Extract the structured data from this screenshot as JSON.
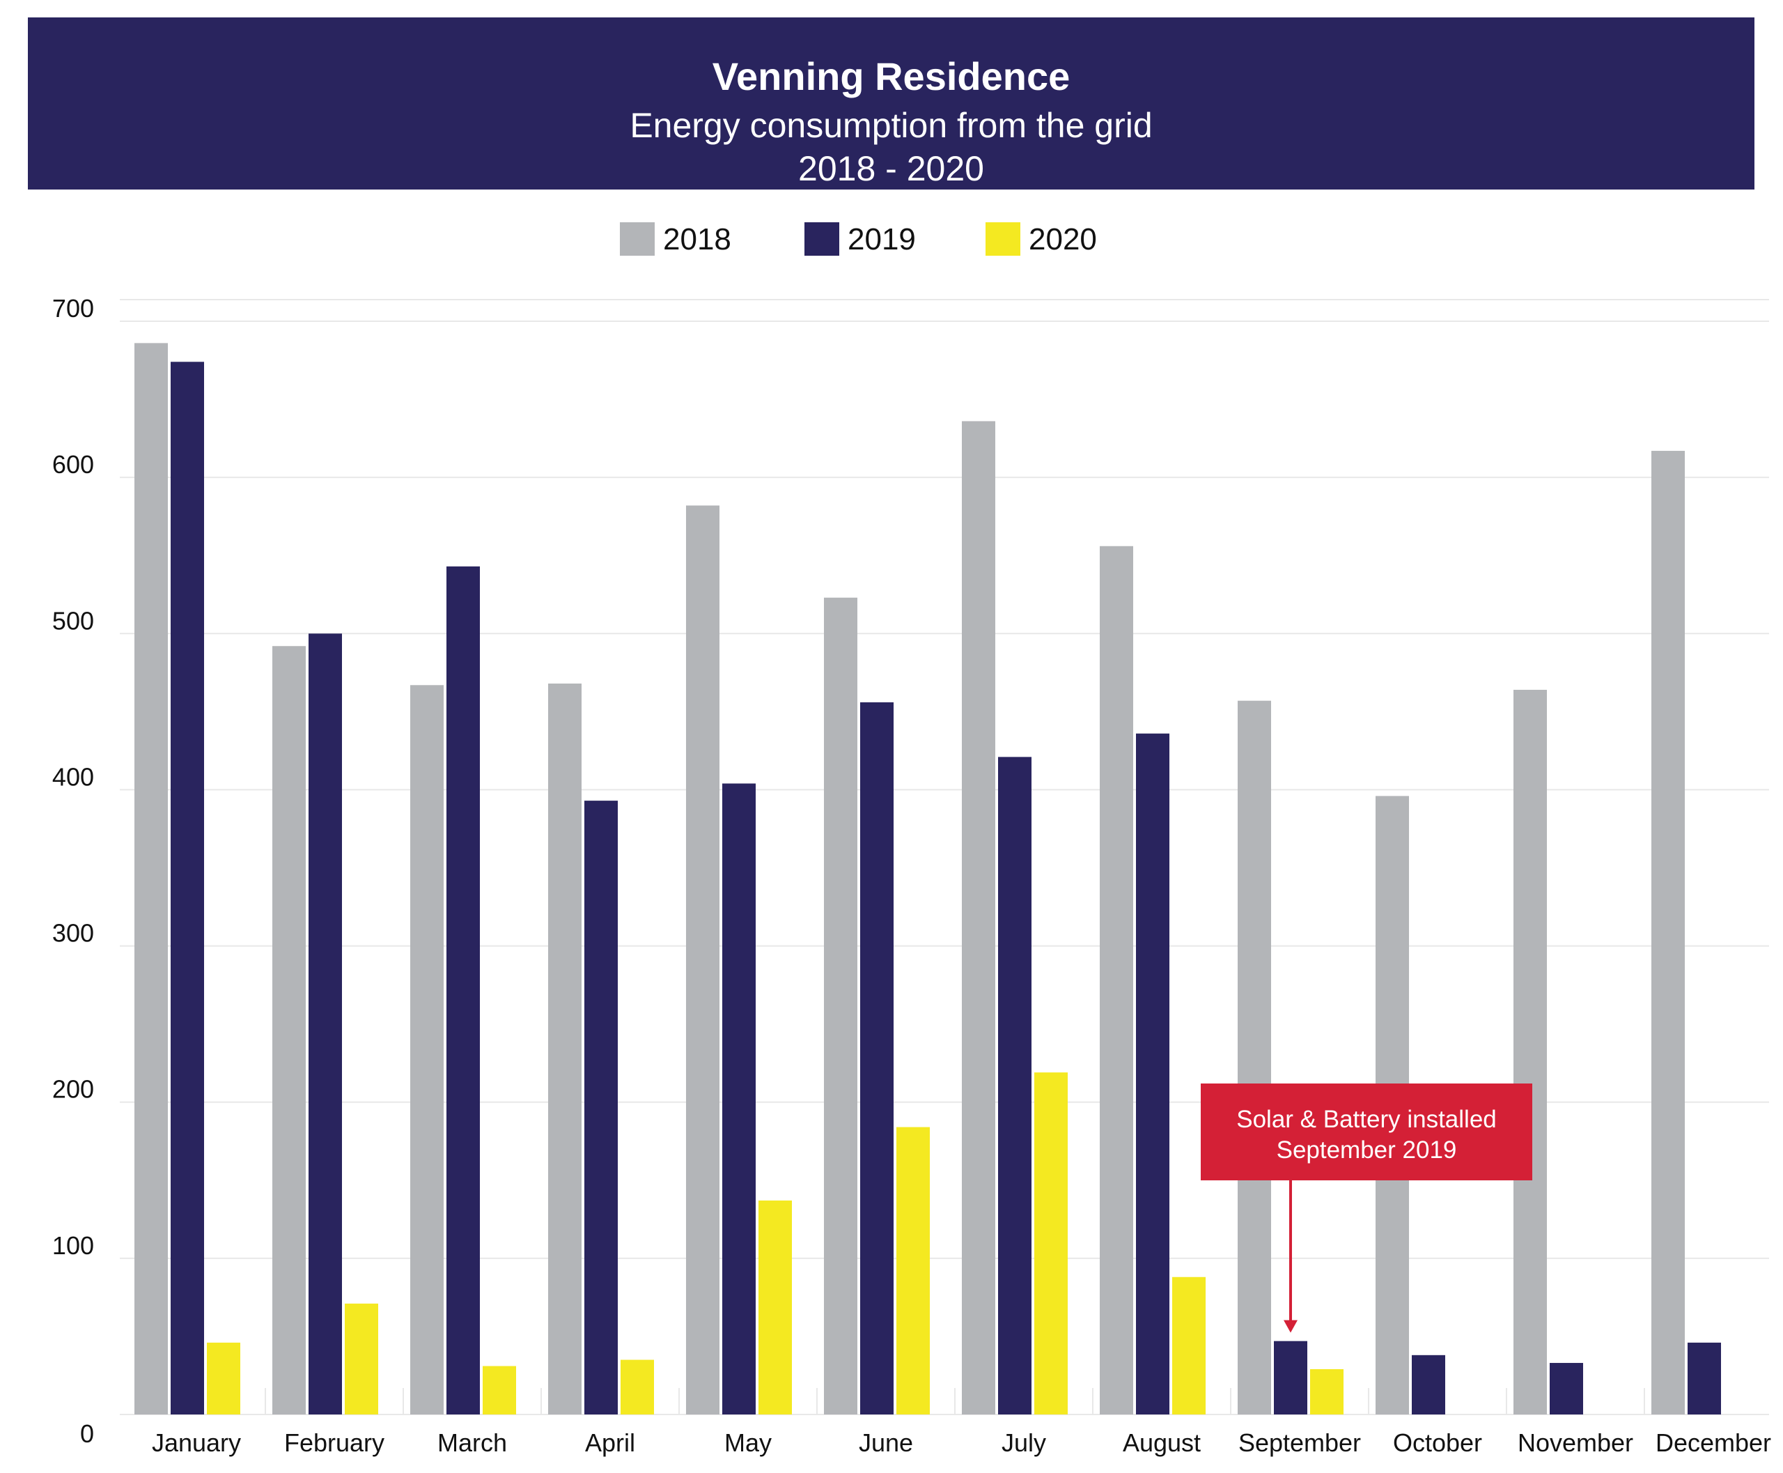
{
  "header": {
    "title": "Venning Residence",
    "subtitle": "Energy consumption from the grid",
    "years": "2018 - 2020"
  },
  "colors": {
    "header_bg": "#29245e",
    "s2018": "#b3b5b8",
    "s2019": "#29245e",
    "s2020": "#f4e921",
    "annotation": "#d42036",
    "grid": "#e8e8e8"
  },
  "chart_data": {
    "type": "bar",
    "title": "Venning Residence",
    "subtitle": "Energy consumption from the grid",
    "xlabel": "",
    "ylabel": "",
    "ylim": [
      0,
      700
    ],
    "yticks": [
      0,
      100,
      200,
      300,
      400,
      500,
      600,
      700
    ],
    "grid": true,
    "legend": "top-center",
    "categories": [
      "January",
      "February",
      "March",
      "April",
      "May",
      "June",
      "July",
      "August",
      "September",
      "October",
      "November",
      "December"
    ],
    "series": [
      {
        "name": "2018",
        "color": "#b3b5b8",
        "values": [
          686,
          492,
          467,
          468,
          582,
          523,
          636,
          556,
          457,
          396,
          464,
          617
        ]
      },
      {
        "name": "2019",
        "color": "#29245e",
        "values": [
          674,
          500,
          543,
          393,
          404,
          456,
          421,
          436,
          47,
          38,
          33,
          46
        ]
      },
      {
        "name": "2020",
        "color": "#f4e921",
        "values": [
          46,
          71,
          31,
          35,
          137,
          184,
          219,
          88,
          29,
          null,
          null,
          null
        ]
      }
    ],
    "annotations": [
      {
        "lines": [
          "Solar & Battery installed",
          "September 2019"
        ],
        "category": "September",
        "series": "2019"
      }
    ]
  }
}
